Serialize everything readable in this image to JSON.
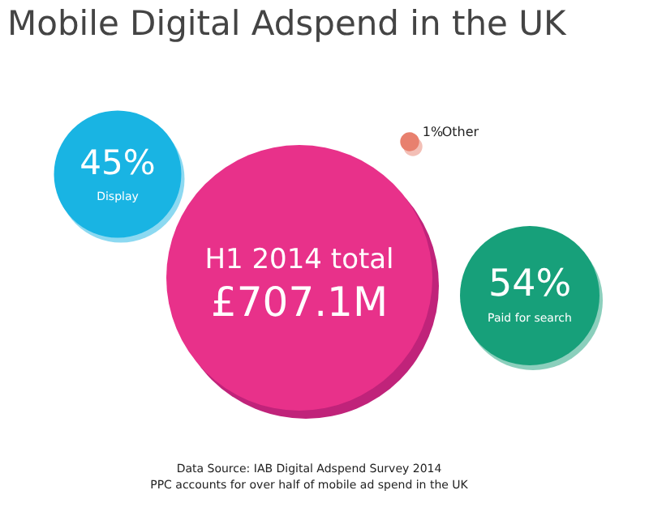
{
  "chart_data": {
    "type": "other",
    "title": "Mobile Digital Adspend in the UK",
    "categories": [
      "Display",
      "Paid for search",
      "Other"
    ],
    "values": [
      45,
      54,
      1
    ],
    "value_labels": [
      "45%",
      "54%",
      "1%"
    ],
    "colors": [
      "#19b4e3",
      "#17a07a",
      "#e8806e"
    ],
    "annotations": [
      "H1 2014 total",
      "£707.1M",
      "Data Source: IAB Digital Adspend Survey 2014",
      "PPC accounts for over half of mobile ad spend in the UK"
    ]
  }
}
